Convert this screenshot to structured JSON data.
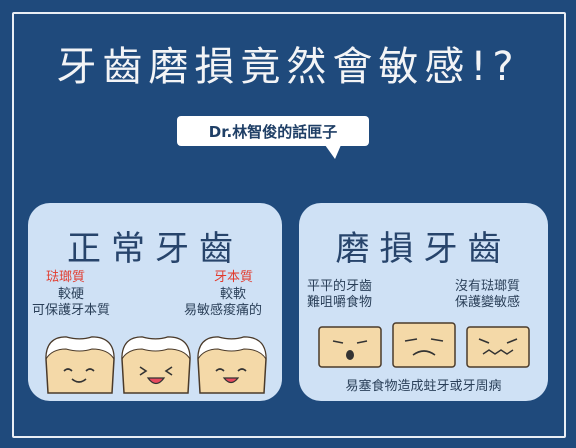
{
  "title": "牙齒磨損竟然會敏感!?",
  "subtitle": "Dr.林智俊的話匣子",
  "left_card": {
    "title": "正常牙齒",
    "enamel_label": "琺瑯質",
    "enamel_desc1": "較硬",
    "enamel_desc2": "可保護牙本質",
    "dentin_label": "牙本質",
    "dentin_desc1": "較軟",
    "dentin_desc2": "易敏感痠痛的"
  },
  "right_card": {
    "title": "磨損牙齒",
    "flat_desc1": "平平的牙齒",
    "flat_desc2": "難咀嚼食物",
    "noenamel_desc1": "沒有琺瑯質",
    "noenamel_desc2": "保護變敏感",
    "caption": "易塞食物造成蛀牙或牙周病"
  },
  "colors": {
    "background": "#1f4a7c",
    "card": "#cfe1f5",
    "tooth": "#f4d9a8",
    "enamel": "#ffffff",
    "accent_red": "#e23b2e"
  }
}
